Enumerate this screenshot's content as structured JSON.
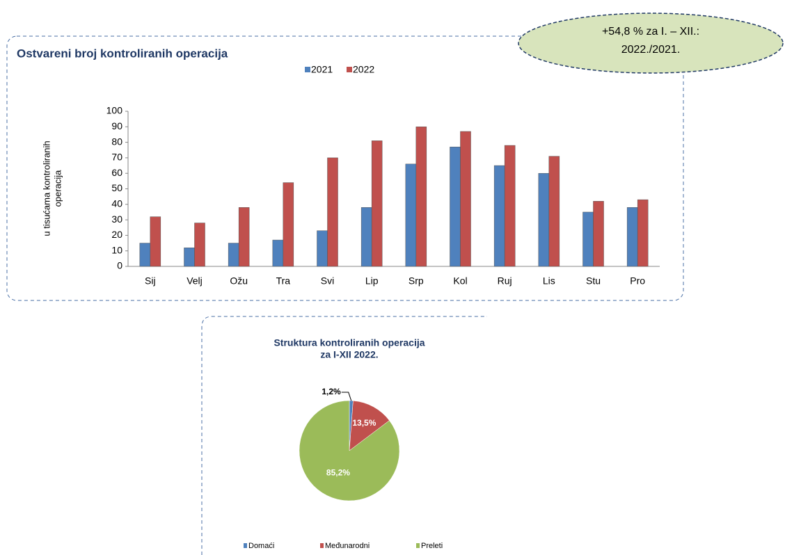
{
  "annotation": [
    "+54,8 % za I. – XII.:",
    "2022./2021."
  ],
  "chart_data": [
    {
      "type": "bar",
      "title": "Ostvareni broj kontroliranih operacija",
      "ylabel": [
        "u tisućama kontroliranih",
        "operacija"
      ],
      "categories": [
        "Sij",
        "Velj",
        "Ožu",
        "Tra",
        "Svi",
        "Lip",
        "Srp",
        "Kol",
        "Ruj",
        "Lis",
        "Stu",
        "Pro"
      ],
      "series": [
        {
          "name": "2021",
          "color": "#4f81bd",
          "values": [
            15,
            12,
            15,
            17,
            23,
            38,
            66,
            77,
            65,
            60,
            35,
            38
          ]
        },
        {
          "name": "2022",
          "color": "#c0504d",
          "values": [
            32,
            28,
            38,
            54,
            70,
            81,
            90,
            87,
            78,
            71,
            42,
            43
          ]
        }
      ],
      "ylim": [
        0,
        100
      ],
      "yticks": [
        0,
        10,
        20,
        30,
        40,
        50,
        60,
        70,
        80,
        90,
        100
      ],
      "legend": "top"
    },
    {
      "type": "pie",
      "title": [
        "Struktura kontroliranih operacija",
        "za I-XII  2022."
      ],
      "categories": [
        "Domaći",
        "Međunarodni",
        "Preleti"
      ],
      "values": [
        1.2,
        13.5,
        85.2
      ],
      "value_labels": [
        "1,2%",
        "13,5%",
        "85,2%"
      ],
      "colors": [
        "#4f81bd",
        "#c0504d",
        "#9bbb59"
      ],
      "legend": "bottom"
    }
  ]
}
